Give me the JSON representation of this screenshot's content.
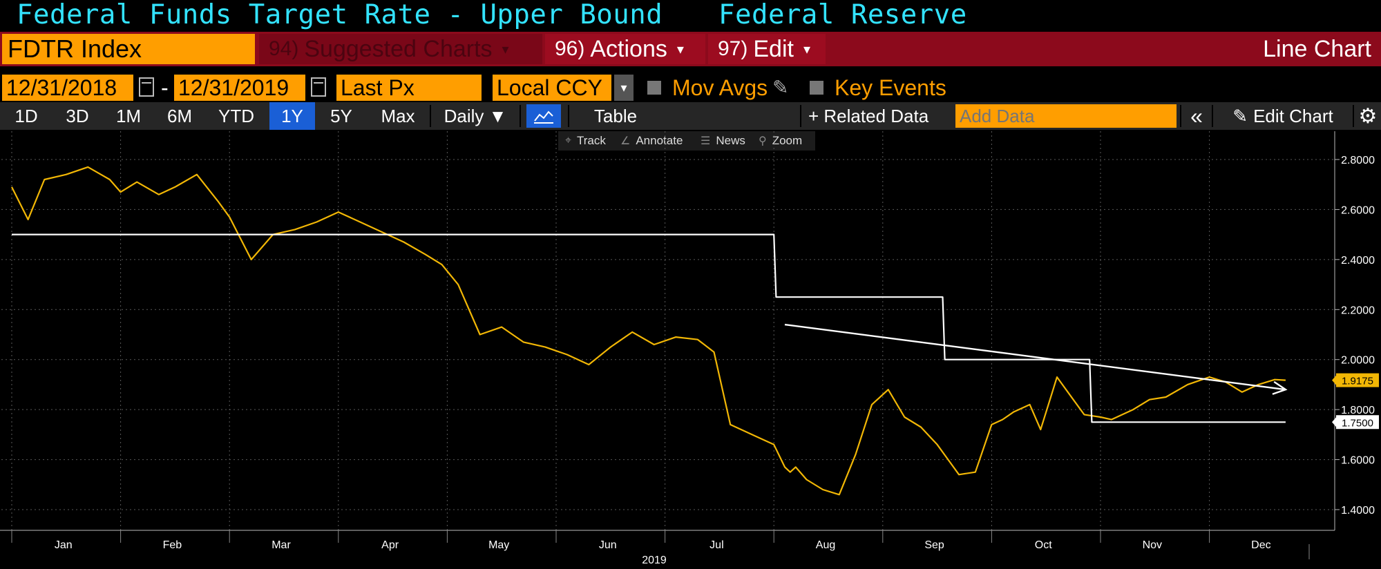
{
  "header": {
    "title": "Federal Funds Target Rate - Upper Bound",
    "source": "Federal Reserve"
  },
  "command_bar": {
    "ticker": "FDTR Index",
    "suggested": {
      "num": "94)",
      "label": "Suggested Charts",
      "caret": "▾"
    },
    "actions": {
      "num": "96)",
      "label": "Actions",
      "caret": "▾"
    },
    "edit": {
      "num": "97)",
      "label": "Edit",
      "caret": "▾"
    },
    "chart_type": "Line Chart"
  },
  "options": {
    "start_date": "12/31/2018",
    "dash": "-",
    "end_date": "12/31/2019",
    "field": "Last Px",
    "currency": "Local CCY",
    "mov_avgs": "Mov Avgs",
    "key_events": "Key Events"
  },
  "tabs": {
    "periods": [
      "1D",
      "3D",
      "1M",
      "6M",
      "YTD",
      "1Y",
      "5Y",
      "Max"
    ],
    "active_period": "1Y",
    "frequency": "Daily ▼",
    "table": "Table",
    "related": "+ Related Data",
    "add_data_placeholder": "Add Data",
    "collapse": "«",
    "edit_chart": "Edit Chart"
  },
  "toolbar": {
    "track": "Track",
    "annotate": "Annotate",
    "news": "News",
    "zoom": "Zoom"
  },
  "icons": [
    "calendar-icon",
    "pencil-icon",
    "gear-icon",
    "line-chart-icon",
    "crosshair-icon",
    "annotate-icon",
    "news-icon",
    "zoom-icon",
    "double-chevron-left-icon"
  ],
  "colors": {
    "title": "#33e3ff",
    "accent_orange": "#ff9e00",
    "bar_red": "#8c0a1c",
    "series_yield": "#f2b705",
    "series_rate": "#ffffff",
    "active_tab": "#1a5fd6"
  },
  "chart_data": {
    "type": "line",
    "x_axis": {
      "months": [
        "Jan",
        "Feb",
        "Mar",
        "Apr",
        "May",
        "Jun",
        "Jul",
        "Aug",
        "Sep",
        "Oct",
        "Nov",
        "Dec"
      ],
      "year_label": "2019"
    },
    "y_axis": {
      "ticks": [
        "2.8000",
        "2.6000",
        "2.4000",
        "2.2000",
        "2.0000",
        "1.8000",
        "1.6000",
        "1.4000"
      ],
      "ylim": [
        1.35,
        2.9
      ],
      "side": "right"
    },
    "grid": true,
    "series": [
      {
        "color": "#f2b705",
        "last_value_label": "1.9175",
        "x": [
          0.0,
          0.15,
          0.3,
          0.5,
          0.7,
          0.9,
          1.0,
          1.15,
          1.35,
          1.5,
          1.7,
          1.9,
          2.0,
          2.2,
          2.4,
          2.6,
          2.8,
          3.0,
          3.2,
          3.4,
          3.6,
          3.8,
          3.95,
          4.1,
          4.3,
          4.5,
          4.7,
          4.9,
          5.1,
          5.3,
          5.5,
          5.7,
          5.9,
          6.1,
          6.3,
          6.45,
          6.6,
          6.8,
          7.0,
          7.1,
          7.15,
          7.2,
          7.3,
          7.45,
          7.6,
          7.75,
          7.9,
          8.05,
          8.2,
          8.35,
          8.5,
          8.6,
          8.7,
          8.85,
          9.0,
          9.1,
          9.2,
          9.35,
          9.45,
          9.6,
          9.75,
          9.85,
          10.0,
          10.1,
          10.2,
          10.3,
          10.45,
          10.6,
          10.8,
          11.0,
          11.15,
          11.3,
          11.45,
          11.6,
          11.7
        ],
        "values": [
          2.69,
          2.56,
          2.72,
          2.74,
          2.77,
          2.72,
          2.67,
          2.71,
          2.66,
          2.69,
          2.74,
          2.63,
          2.57,
          2.4,
          2.5,
          2.52,
          2.55,
          2.59,
          2.55,
          2.51,
          2.47,
          2.42,
          2.38,
          2.3,
          2.1,
          2.13,
          2.07,
          2.05,
          2.02,
          1.98,
          2.05,
          2.11,
          2.06,
          2.09,
          2.08,
          2.03,
          1.74,
          1.7,
          1.66,
          1.57,
          1.55,
          1.57,
          1.52,
          1.48,
          1.46,
          1.62,
          1.82,
          1.88,
          1.77,
          1.73,
          1.66,
          1.6,
          1.54,
          1.55,
          1.74,
          1.76,
          1.79,
          1.82,
          1.72,
          1.93,
          1.84,
          1.78,
          1.77,
          1.76,
          1.78,
          1.8,
          1.84,
          1.85,
          1.9,
          1.93,
          1.91,
          1.87,
          1.9,
          1.92,
          1.9175
        ]
      },
      {
        "color": "#ffffff",
        "last_value_label": "1.7500",
        "x": [
          0.0,
          7.0,
          7.02,
          8.55,
          8.57,
          9.9,
          9.92,
          11.7
        ],
        "values": [
          2.5,
          2.5,
          2.25,
          2.25,
          2.0,
          2.0,
          1.75,
          1.75
        ]
      }
    ],
    "annotations": [
      {
        "type": "trendline-arrow",
        "x": [
          7.1,
          11.7
        ],
        "values": [
          2.14,
          1.88
        ]
      }
    ]
  }
}
